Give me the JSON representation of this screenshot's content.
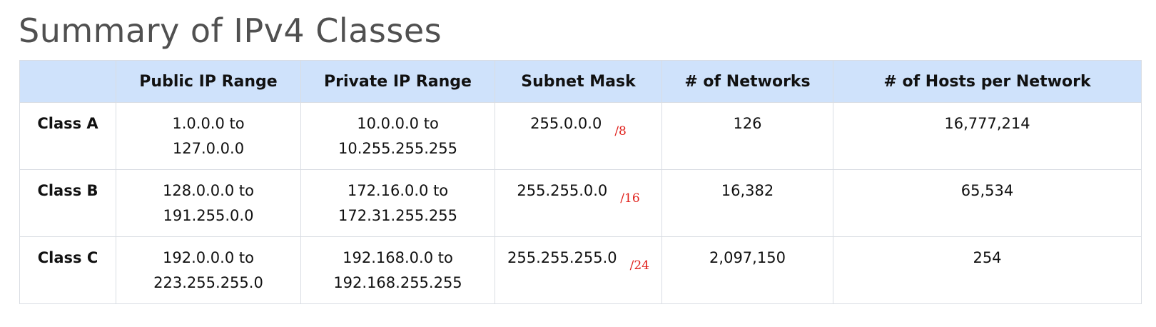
{
  "title": "Summary of IPv4 Classes",
  "headers": [
    "",
    "Public IP Range",
    "Private IP Range",
    "Subnet Mask",
    "# of Networks",
    "# of Hosts per Network"
  ],
  "rows": [
    {
      "class": "Class A",
      "public_start": "1.0.0.0 to",
      "public_end": "127.0.0.0",
      "private_start": "10.0.0.0 to",
      "private_end": "10.255.255.255",
      "mask": "255.0.0.0",
      "cidr": "/8",
      "networks": "126",
      "hosts": "16,777,214"
    },
    {
      "class": "Class B",
      "public_start": "128.0.0.0 to",
      "public_end": "191.255.0.0",
      "private_start": "172.16.0.0 to",
      "private_end": "172.31.255.255",
      "mask": "255.255.0.0",
      "cidr": "/16",
      "networks": "16,382",
      "hosts": "65,534"
    },
    {
      "class": "Class C",
      "public_start": "192.0.0.0 to",
      "public_end": "223.255.255.0",
      "private_start": "192.168.0.0 to",
      "private_end": "192.168.255.255",
      "mask": "255.255.255.0",
      "cidr": "/24",
      "networks": "2,097,150",
      "hosts": "254"
    }
  ],
  "colors": {
    "header_bg": "#cfe2fb",
    "cidr": "#e0201b",
    "title": "#505050"
  }
}
